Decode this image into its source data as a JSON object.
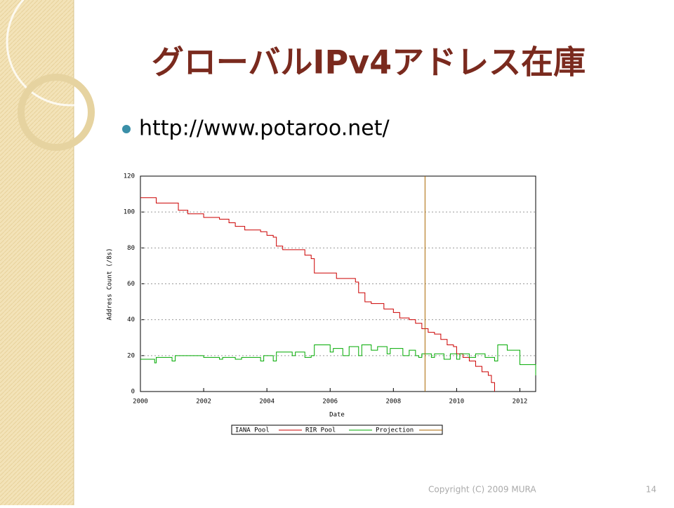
{
  "slide": {
    "title": "グローバルIPv4アドレス在庫",
    "bullet": "http://www.potaroo.net/",
    "footer": "Copyright (C) 2009 MURA",
    "page_number": "14"
  },
  "chart_data": {
    "type": "line",
    "step": true,
    "x_label": "Date",
    "y_label": "Address Count (/8s)",
    "xlim": [
      2000,
      2012.5
    ],
    "ylim": [
      0,
      120
    ],
    "xticks": [
      2000,
      2002,
      2004,
      2006,
      2008,
      2010,
      2012
    ],
    "yticks": [
      0,
      20,
      40,
      60,
      80,
      100,
      120
    ],
    "grid": true,
    "series": [
      {
        "name": "IANA Pool",
        "color": "#cc0000",
        "x": [
          2000,
          2000.5,
          2001.2,
          2001.5,
          2002,
          2002.5,
          2002.8,
          2003,
          2003.3,
          2003.8,
          2004,
          2004.2,
          2004.3,
          2004.5,
          2005.2,
          2005.4,
          2005.5,
          2006.2,
          2006.8,
          2006.9,
          2007.1,
          2007.3,
          2007.7,
          2008,
          2008.2,
          2008.5,
          2008.7,
          2008.9,
          2009.1,
          2009.3,
          2009.5,
          2009.7,
          2009.9,
          2010,
          2010.2,
          2010.4,
          2010.6,
          2010.8,
          2011,
          2011.1,
          2011.2
        ],
        "values": [
          108,
          105,
          101,
          99,
          97,
          96,
          94,
          92,
          90,
          89,
          87,
          86,
          81,
          79,
          76,
          74,
          66,
          63,
          61,
          55,
          50,
          49,
          46,
          44,
          41,
          40,
          38,
          35,
          33,
          32,
          29,
          26,
          25,
          21,
          19,
          17,
          14,
          11,
          9,
          5,
          0
        ]
      },
      {
        "name": "RIR Pool",
        "color": "#00aa00",
        "x": [
          2000,
          2000.45,
          2000.5,
          2001,
          2001.1,
          2002,
          2002.5,
          2002.6,
          2003,
          2003.2,
          2003.8,
          2003.9,
          2004.2,
          2004.3,
          2004.8,
          2004.9,
          2005.2,
          2005.4,
          2005.5,
          2006,
          2006.1,
          2006.4,
          2006.6,
          2006.9,
          2007,
          2007.3,
          2007.5,
          2007.8,
          2007.9,
          2008.3,
          2008.5,
          2008.7,
          2008.8,
          2008.9,
          2009.2,
          2009.3,
          2009.6,
          2009.8,
          2010,
          2010.1,
          2010.4,
          2010.6,
          2010.9,
          2011.2,
          2011.3,
          2011.6,
          2012,
          2012.5
        ],
        "values": [
          18,
          16,
          19,
          17,
          20,
          19,
          18,
          19,
          18,
          19,
          17,
          20,
          17,
          22,
          20,
          22,
          19,
          20,
          26,
          22,
          24,
          20,
          25,
          20,
          26,
          23,
          25,
          21,
          24,
          20,
          23,
          20,
          19,
          21,
          19,
          21,
          18,
          21,
          18,
          21,
          19,
          21,
          19,
          17,
          26,
          23,
          15,
          9
        ]
      },
      {
        "name": "Projection",
        "color": "#aa6600",
        "x": [
          2009,
          2009
        ],
        "values": [
          0,
          120
        ]
      }
    ]
  }
}
